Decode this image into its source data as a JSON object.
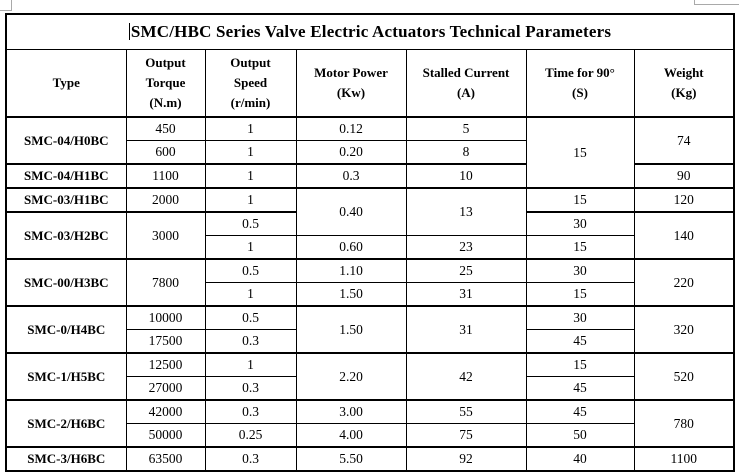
{
  "page": {
    "background": "#ffffff",
    "border_color": "#000000",
    "text_color": "#000000",
    "artifact_color": "#a9a9a9",
    "caret_visible": true
  },
  "table": {
    "title": "SMC/HBC Series Valve Electric Actuators Technical Parameters",
    "columns": [
      {
        "id": "type",
        "lines": [
          "Type"
        ]
      },
      {
        "id": "output-torque",
        "lines": [
          "Output",
          "Torque",
          "(N.m)"
        ]
      },
      {
        "id": "output-speed",
        "lines": [
          "Output",
          "Speed",
          "(r/min)"
        ]
      },
      {
        "id": "motor-power",
        "lines": [
          "Motor Power",
          "(Kw)"
        ]
      },
      {
        "id": "stalled-current",
        "lines": [
          "Stalled Current",
          "(A)"
        ]
      },
      {
        "id": "time-for-90",
        "lines": [
          "Time for 90°",
          "(S)"
        ]
      },
      {
        "id": "weight",
        "lines": [
          "Weight",
          "(Kg)"
        ]
      }
    ],
    "rows": [
      {
        "group_start": true,
        "cells": [
          {
            "v": "SMC-04/H0BC",
            "rs": 2,
            "type": true
          },
          {
            "v": "450"
          },
          {
            "v": "1"
          },
          {
            "v": "0.12"
          },
          {
            "v": "5"
          },
          {
            "v": "15",
            "rs": 3
          },
          {
            "v": "74",
            "rs": 2
          }
        ]
      },
      {
        "group_start": false,
        "cells": [
          {
            "v": "600"
          },
          {
            "v": "1"
          },
          {
            "v": "0.20"
          },
          {
            "v": "8"
          }
        ]
      },
      {
        "group_start": true,
        "cells": [
          {
            "v": "SMC-04/H1BC",
            "type": true
          },
          {
            "v": "1100"
          },
          {
            "v": "1"
          },
          {
            "v": "0.3"
          },
          {
            "v": "10"
          },
          {
            "v": "90"
          }
        ]
      },
      {
        "group_start": true,
        "cells": [
          {
            "v": "SMC-03/H1BC",
            "type": true
          },
          {
            "v": "2000"
          },
          {
            "v": "1"
          },
          {
            "v": "0.40",
            "rs": 2
          },
          {
            "v": "13",
            "rs": 2
          },
          {
            "v": "15"
          },
          {
            "v": "120"
          }
        ]
      },
      {
        "group_start": true,
        "cells": [
          {
            "v": "SMC-03/H2BC",
            "rs": 2,
            "type": true
          },
          {
            "v": "3000",
            "rs": 2
          },
          {
            "v": "0.5"
          },
          {
            "v": "30"
          },
          {
            "v": "140",
            "rs": 2
          }
        ]
      },
      {
        "group_start": false,
        "cells": [
          {
            "v": "1"
          },
          {
            "v": "0.60"
          },
          {
            "v": "23"
          },
          {
            "v": "15"
          }
        ]
      },
      {
        "group_start": true,
        "cells": [
          {
            "v": "SMC-00/H3BC",
            "rs": 2,
            "type": true
          },
          {
            "v": "7800",
            "rs": 2
          },
          {
            "v": "0.5"
          },
          {
            "v": "1.10"
          },
          {
            "v": "25"
          },
          {
            "v": "30"
          },
          {
            "v": "220",
            "rs": 2
          }
        ]
      },
      {
        "group_start": false,
        "cells": [
          {
            "v": "1"
          },
          {
            "v": "1.50"
          },
          {
            "v": "31"
          },
          {
            "v": "15"
          }
        ]
      },
      {
        "group_start": true,
        "cells": [
          {
            "v": "SMC-0/H4BC",
            "rs": 2,
            "type": true
          },
          {
            "v": "10000"
          },
          {
            "v": "0.5"
          },
          {
            "v": "1.50",
            "rs": 2
          },
          {
            "v": "31",
            "rs": 2
          },
          {
            "v": "30"
          },
          {
            "v": "320",
            "rs": 2
          }
        ]
      },
      {
        "group_start": false,
        "cells": [
          {
            "v": "17500"
          },
          {
            "v": "0.3"
          },
          {
            "v": "45"
          }
        ]
      },
      {
        "group_start": true,
        "cells": [
          {
            "v": "SMC-1/H5BC",
            "rs": 2,
            "type": true
          },
          {
            "v": "12500"
          },
          {
            "v": "1"
          },
          {
            "v": "2.20",
            "rs": 2
          },
          {
            "v": "42",
            "rs": 2
          },
          {
            "v": "15"
          },
          {
            "v": "520",
            "rs": 2
          }
        ]
      },
      {
        "group_start": false,
        "cells": [
          {
            "v": "27000"
          },
          {
            "v": "0.3"
          },
          {
            "v": "45"
          }
        ]
      },
      {
        "group_start": true,
        "cells": [
          {
            "v": "SMC-2/H6BC",
            "rs": 2,
            "type": true
          },
          {
            "v": "42000"
          },
          {
            "v": "0.3"
          },
          {
            "v": "3.00"
          },
          {
            "v": "55"
          },
          {
            "v": "45"
          },
          {
            "v": "780",
            "rs": 2
          }
        ]
      },
      {
        "group_start": false,
        "cells": [
          {
            "v": "50000"
          },
          {
            "v": "0.25"
          },
          {
            "v": "4.00"
          },
          {
            "v": "75"
          },
          {
            "v": "50"
          }
        ]
      },
      {
        "group_start": true,
        "cells": [
          {
            "v": "SMC-3/H6BC",
            "type": true
          },
          {
            "v": "63500"
          },
          {
            "v": "0.3"
          },
          {
            "v": "5.50"
          },
          {
            "v": "92"
          },
          {
            "v": "40"
          },
          {
            "v": "1100"
          }
        ]
      }
    ]
  }
}
